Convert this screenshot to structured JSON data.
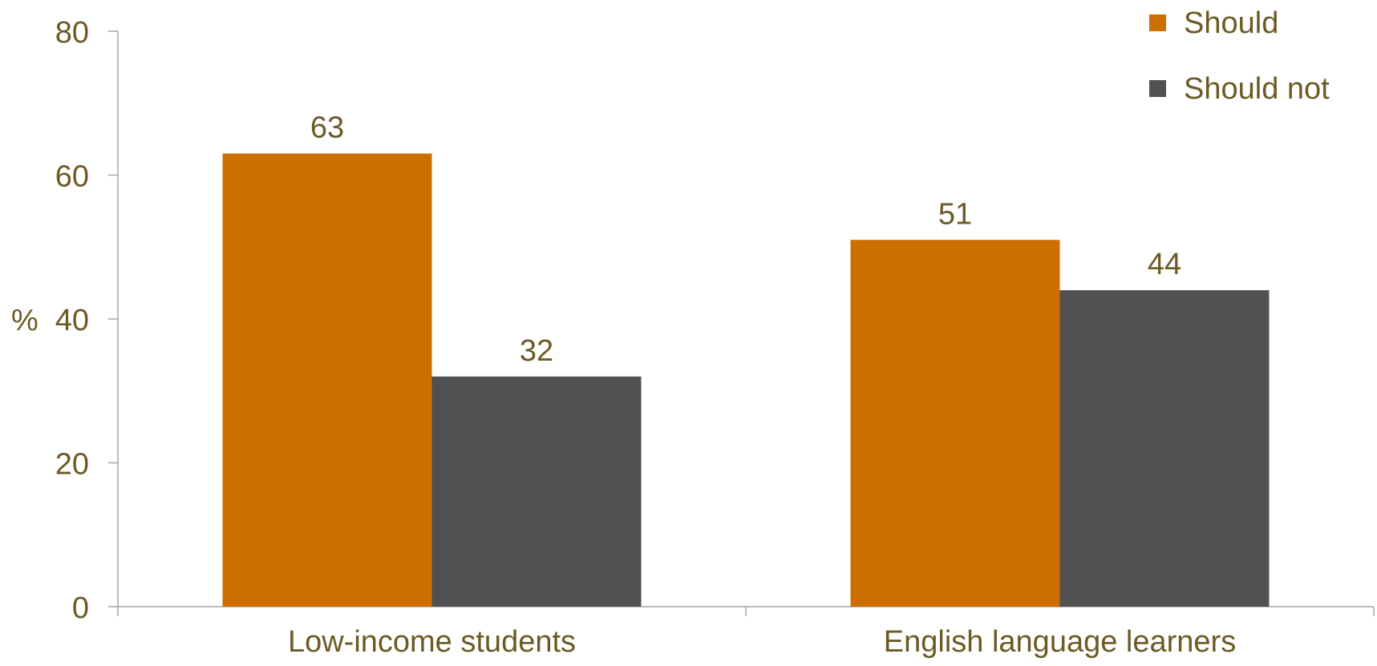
{
  "chart_data": {
    "type": "bar",
    "categories": [
      "Low-income students",
      "English language learners"
    ],
    "series": [
      {
        "name": "Should",
        "values": [
          63,
          51
        ],
        "color": "#cc6f00"
      },
      {
        "name": "Should not",
        "values": [
          32,
          44
        ],
        "color": "#515152"
      }
    ],
    "title": "",
    "xlabel": "",
    "ylabel": "%",
    "ylim": [
      0,
      80
    ],
    "yticks": [
      "0",
      "20",
      "40",
      "60",
      "80"
    ],
    "data_labels": [
      [
        "63",
        "51"
      ],
      [
        "32",
        "44"
      ]
    ],
    "grid": false,
    "legend_position": "top-right",
    "text_color": "#6b5a24",
    "axis_color": "#a6a6a6"
  }
}
